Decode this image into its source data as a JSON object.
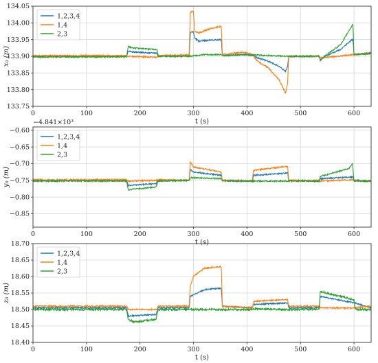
{
  "chart_data": [
    {
      "type": "line",
      "xlabel": "t (s)",
      "ylabel": "x₀ (m)",
      "offset_label": "",
      "xlim": [
        0,
        632
      ],
      "ylim": [
        133.75,
        134.05
      ],
      "xticks": [
        0,
        100,
        200,
        300,
        400,
        500,
        600
      ],
      "xtick_labels": [
        "0",
        "100",
        "200",
        "300",
        "400",
        "500",
        "600"
      ],
      "yticks": [
        133.75,
        133.8,
        133.85,
        133.9,
        133.95,
        134.0,
        134.05
      ],
      "ytick_labels": [
        "133.75",
        "133.80",
        "133.85",
        "133.90",
        "133.95",
        "134.00",
        "134.05"
      ],
      "grid": true,
      "legend": "top-left",
      "series": [
        {
          "name": "1,2,3,4",
          "color": "#1f77b4",
          "noise": 0.002,
          "points": [
            [
              0,
              133.9
            ],
            [
              175,
              133.9
            ],
            [
              178,
              133.915
            ],
            [
              185,
              133.913
            ],
            [
              232,
              133.909
            ],
            [
              234,
              133.9
            ],
            [
              292,
              133.902
            ],
            [
              294,
              133.97
            ],
            [
              300,
              133.975
            ],
            [
              302,
              133.955
            ],
            [
              310,
              133.945
            ],
            [
              330,
              133.948
            ],
            [
              352,
              133.95
            ],
            [
              354,
              133.902
            ],
            [
              395,
              133.905
            ],
            [
              410,
              133.903
            ],
            [
              420,
              133.895
            ],
            [
              440,
              133.885
            ],
            [
              460,
              133.87
            ],
            [
              472,
              133.855
            ],
            [
              476,
              133.87
            ],
            [
              478,
              133.9
            ],
            [
              535,
              133.9
            ],
            [
              537,
              133.89
            ],
            [
              545,
              133.9
            ],
            [
              575,
              133.92
            ],
            [
              595,
              133.948
            ],
            [
              598,
              133.95
            ],
            [
              600,
              133.905
            ],
            [
              632,
              133.91
            ]
          ]
        },
        {
          "name": "1,4",
          "color": "#ff7f0e",
          "noise": 0.002,
          "points": [
            [
              0,
              133.902
            ],
            [
              175,
              133.902
            ],
            [
              178,
              133.9
            ],
            [
              232,
              133.897
            ],
            [
              234,
              133.902
            ],
            [
              292,
              133.904
            ],
            [
              294,
              134.032
            ],
            [
              300,
              134.035
            ],
            [
              302,
              133.975
            ],
            [
              310,
              133.97
            ],
            [
              330,
              133.982
            ],
            [
              352,
              133.99
            ],
            [
              354,
              133.905
            ],
            [
              395,
              133.912
            ],
            [
              410,
              133.905
            ],
            [
              420,
              133.885
            ],
            [
              440,
              133.865
            ],
            [
              460,
              133.83
            ],
            [
              472,
              133.79
            ],
            [
              476,
              133.82
            ],
            [
              478,
              133.9
            ],
            [
              535,
              133.9
            ],
            [
              537,
              133.895
            ],
            [
              570,
              133.9
            ],
            [
              600,
              133.905
            ],
            [
              632,
              133.91
            ]
          ]
        },
        {
          "name": "2,3",
          "color": "#2ca02c",
          "noise": 0.002,
          "points": [
            [
              0,
              133.898
            ],
            [
              175,
              133.898
            ],
            [
              178,
              133.93
            ],
            [
              185,
              133.925
            ],
            [
              232,
              133.92
            ],
            [
              234,
              133.9
            ],
            [
              292,
              133.9
            ],
            [
              320,
              133.905
            ],
            [
              352,
              133.905
            ],
            [
              354,
              133.902
            ],
            [
              400,
              133.905
            ],
            [
              440,
              133.902
            ],
            [
              478,
              133.9
            ],
            [
              535,
              133.9
            ],
            [
              537,
              133.885
            ],
            [
              545,
              133.9
            ],
            [
              575,
              133.935
            ],
            [
              590,
              133.975
            ],
            [
              598,
              133.995
            ],
            [
              600,
              133.905
            ],
            [
              632,
              133.908
            ]
          ]
        }
      ]
    },
    {
      "type": "line",
      "xlabel": "t (s)",
      "ylabel": "y₀ (m)",
      "offset_label": "−4.841×10³",
      "xlim": [
        0,
        632
      ],
      "ylim": [
        -0.89,
        -0.59
      ],
      "xticks": [
        0,
        100,
        200,
        300,
        400,
        500,
        600
      ],
      "xtick_labels": [
        "0",
        "100",
        "200",
        "300",
        "400",
        "500",
        "600"
      ],
      "yticks": [
        -0.85,
        -0.8,
        -0.75,
        -0.7,
        -0.65,
        -0.6
      ],
      "ytick_labels": [
        "−0.85",
        "−0.80",
        "−0.75",
        "−0.70",
        "−0.65",
        "−0.60"
      ],
      "grid": true,
      "legend": "top-left",
      "series": [
        {
          "name": "1,2,3,4",
          "color": "#1f77b4",
          "noise": 0.002,
          "points": [
            [
              0,
              -0.75
            ],
            [
              175,
              -0.75
            ],
            [
              178,
              -0.765
            ],
            [
              230,
              -0.76
            ],
            [
              234,
              -0.75
            ],
            [
              292,
              -0.75
            ],
            [
              294,
              -0.718
            ],
            [
              300,
              -0.725
            ],
            [
              352,
              -0.735
            ],
            [
              354,
              -0.75
            ],
            [
              410,
              -0.752
            ],
            [
              412,
              -0.735
            ],
            [
              476,
              -0.728
            ],
            [
              478,
              -0.75
            ],
            [
              535,
              -0.752
            ],
            [
              537,
              -0.745
            ],
            [
              598,
              -0.74
            ],
            [
              600,
              -0.75
            ],
            [
              632,
              -0.752
            ]
          ]
        },
        {
          "name": "1,4",
          "color": "#ff7f0e",
          "noise": 0.002,
          "points": [
            [
              0,
              -0.748
            ],
            [
              175,
              -0.748
            ],
            [
              178,
              -0.752
            ],
            [
              232,
              -0.75
            ],
            [
              234,
              -0.748
            ],
            [
              292,
              -0.75
            ],
            [
              294,
              -0.695
            ],
            [
              300,
              -0.71
            ],
            [
              352,
              -0.725
            ],
            [
              354,
              -0.75
            ],
            [
              410,
              -0.752
            ],
            [
              412,
              -0.72
            ],
            [
              476,
              -0.708
            ],
            [
              478,
              -0.75
            ],
            [
              535,
              -0.75
            ],
            [
              537,
              -0.752
            ],
            [
              598,
              -0.748
            ],
            [
              600,
              -0.75
            ],
            [
              632,
              -0.752
            ]
          ]
        },
        {
          "name": "2,3",
          "color": "#2ca02c",
          "noise": 0.002,
          "points": [
            [
              0,
              -0.752
            ],
            [
              175,
              -0.752
            ],
            [
              178,
              -0.778
            ],
            [
              230,
              -0.77
            ],
            [
              234,
              -0.752
            ],
            [
              292,
              -0.75
            ],
            [
              294,
              -0.742
            ],
            [
              352,
              -0.745
            ],
            [
              354,
              -0.752
            ],
            [
              476,
              -0.752
            ],
            [
              478,
              -0.752
            ],
            [
              535,
              -0.752
            ],
            [
              537,
              -0.738
            ],
            [
              590,
              -0.715
            ],
            [
              597,
              -0.7
            ],
            [
              600,
              -0.752
            ],
            [
              632,
              -0.752
            ]
          ]
        }
      ]
    },
    {
      "type": "line",
      "xlabel": "t (s)",
      "ylabel": "z₀ (m)",
      "offset_label": "",
      "xlim": [
        0,
        632
      ],
      "ylim": [
        18.4,
        18.7
      ],
      "xticks": [
        0,
        100,
        200,
        300,
        400,
        500,
        600
      ],
      "xtick_labels": [
        "0",
        "100",
        "200",
        "300",
        "400",
        "500",
        "600"
      ],
      "yticks": [
        18.4,
        18.45,
        18.5,
        18.55,
        18.6,
        18.65,
        18.7
      ],
      "ytick_labels": [
        "18.40",
        "18.45",
        "18.50",
        "18.55",
        "18.60",
        "18.65",
        "18.70"
      ],
      "grid": true,
      "legend": "top-left",
      "series": [
        {
          "name": "1,2,3,4",
          "color": "#1f77b4",
          "noise": 0.002,
          "points": [
            [
              0,
              18.505
            ],
            [
              175,
              18.505
            ],
            [
              178,
              18.48
            ],
            [
              230,
              18.485
            ],
            [
              234,
              18.505
            ],
            [
              292,
              18.505
            ],
            [
              294,
              18.54
            ],
            [
              320,
              18.56
            ],
            [
              352,
              18.565
            ],
            [
              354,
              18.51
            ],
            [
              410,
              18.505
            ],
            [
              412,
              18.515
            ],
            [
              476,
              18.52
            ],
            [
              478,
              18.505
            ],
            [
              535,
              18.505
            ],
            [
              537,
              18.54
            ],
            [
              600,
              18.52
            ],
            [
              632,
              18.505
            ]
          ]
        },
        {
          "name": "1,4",
          "color": "#ff7f0e",
          "noise": 0.002,
          "points": [
            [
              0,
              18.51
            ],
            [
              175,
              18.51
            ],
            [
              178,
              18.5
            ],
            [
              232,
              18.5
            ],
            [
              234,
              18.51
            ],
            [
              292,
              18.51
            ],
            [
              294,
              18.57
            ],
            [
              300,
              18.6
            ],
            [
              320,
              18.625
            ],
            [
              352,
              18.63
            ],
            [
              354,
              18.51
            ],
            [
              410,
              18.505
            ],
            [
              412,
              18.525
            ],
            [
              476,
              18.53
            ],
            [
              478,
              18.51
            ],
            [
              535,
              18.51
            ],
            [
              537,
              18.505
            ],
            [
              600,
              18.505
            ],
            [
              632,
              18.51
            ]
          ]
        },
        {
          "name": "2,3",
          "color": "#2ca02c",
          "noise": 0.003,
          "points": [
            [
              0,
              18.5
            ],
            [
              175,
              18.5
            ],
            [
              178,
              18.47
            ],
            [
              190,
              18.462
            ],
            [
              230,
              18.47
            ],
            [
              234,
              18.5
            ],
            [
              292,
              18.5
            ],
            [
              352,
              18.5
            ],
            [
              354,
              18.5
            ],
            [
              410,
              18.5
            ],
            [
              412,
              18.502
            ],
            [
              476,
              18.5
            ],
            [
              478,
              18.5
            ],
            [
              535,
              18.5
            ],
            [
              537,
              18.555
            ],
            [
              560,
              18.545
            ],
            [
              600,
              18.53
            ],
            [
              602,
              18.5
            ],
            [
              632,
              18.5
            ]
          ]
        }
      ]
    }
  ]
}
